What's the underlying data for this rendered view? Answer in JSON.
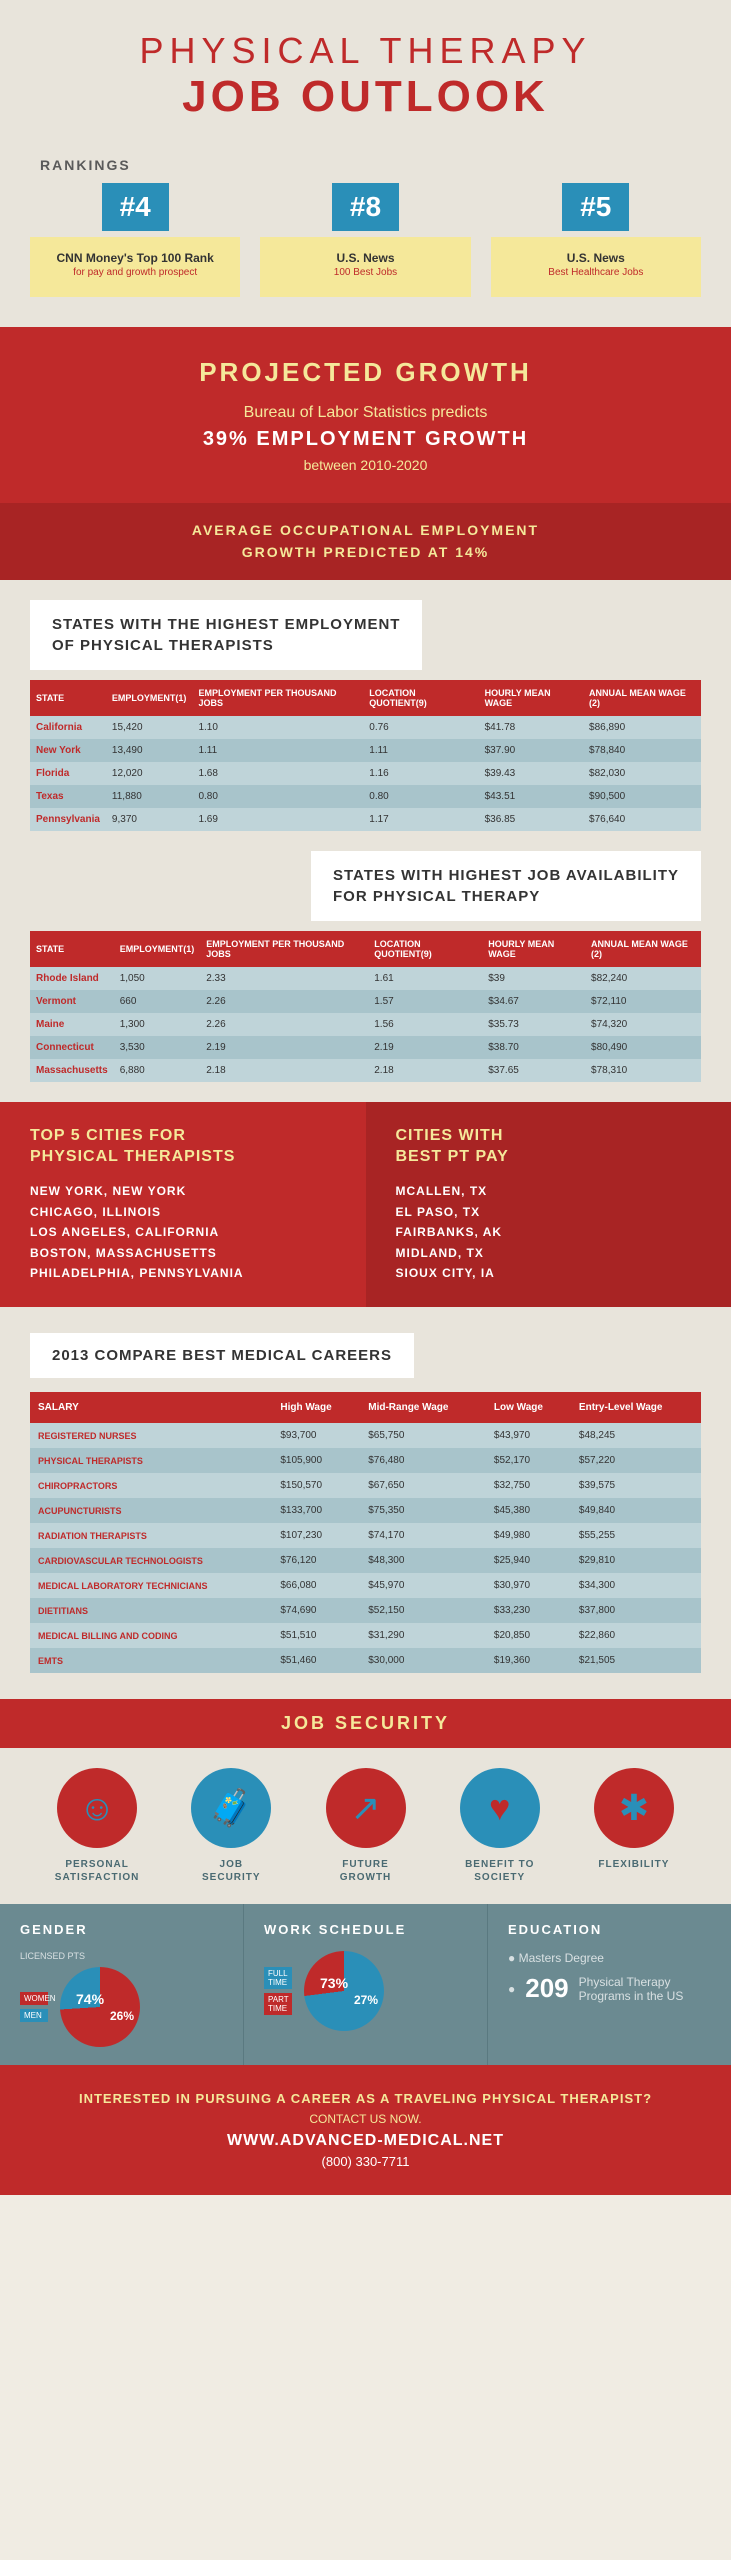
{
  "title": {
    "line1": "PHYSICAL THERAPY",
    "line2": "JOB OUTLOOK"
  },
  "rankings": {
    "label": "RANKINGS",
    "cards": [
      {
        "rank": "#4",
        "title": "CNN Money's Top 100 Rank",
        "sub": "for pay and growth prospect"
      },
      {
        "rank": "#8",
        "title": "U.S. News",
        "sub": "100 Best Jobs"
      },
      {
        "rank": "#5",
        "title": "U.S. News",
        "sub": "Best Healthcare Jobs"
      }
    ]
  },
  "growth": {
    "title": "PROJECTED GROWTH",
    "text": "Bureau of Labor Statistics predicts",
    "pct": "39% EMPLOYMENT GROWTH",
    "years": "between 2010-2020",
    "avg1": "AVERAGE OCCUPATIONAL EMPLOYMENT",
    "avg2": "GROWTH PREDICTED AT 14%"
  },
  "highest_emp": {
    "label": "STATES WITH THE HIGHEST EMPLOYMENT\nOF PHYSICAL THERAPISTS",
    "headers": [
      "STATE",
      "EMPLOYMENT(1)",
      "EMPLOYMENT PER THOUSAND JOBS",
      "LOCATION QUOTIENT(9)",
      "HOURLY MEAN WAGE",
      "ANNUAL MEAN WAGE (2)"
    ],
    "rows": [
      [
        "California",
        "15,420",
        "1.10",
        "0.76",
        "$41.78",
        "$86,890"
      ],
      [
        "New York",
        "13,490",
        "1.11",
        "1.11",
        "$37.90",
        "$78,840"
      ],
      [
        "Florida",
        "12,020",
        "1.68",
        "1.16",
        "$39.43",
        "$82,030"
      ],
      [
        "Texas",
        "11,880",
        "0.80",
        "0.80",
        "$43.51",
        "$90,500"
      ],
      [
        "Pennsylvania",
        "9,370",
        "1.69",
        "1.17",
        "$36.85",
        "$76,640"
      ]
    ]
  },
  "highest_avail": {
    "label": "STATES WITH HIGHEST JOB AVAILABILITY\nFOR PHYSICAL THERAPY",
    "headers": [
      "STATE",
      "EMPLOYMENT(1)",
      "EMPLOYMENT PER THOUSAND JOBS",
      "LOCATION QUOTIENT(9)",
      "HOURLY MEAN WAGE",
      "ANNUAL MEAN WAGE (2)"
    ],
    "rows": [
      [
        "Rhode Island",
        "1,050",
        "2.33",
        "1.61",
        "$39",
        "$82,240"
      ],
      [
        "Vermont",
        "660",
        "2.26",
        "1.57",
        "$34.67",
        "$72,110"
      ],
      [
        "Maine",
        "1,300",
        "2.26",
        "1.56",
        "$35.73",
        "$74,320"
      ],
      [
        "Connecticut",
        "3,530",
        "2.19",
        "2.19",
        "$38.70",
        "$80,490"
      ],
      [
        "Massachusetts",
        "6,880",
        "2.18",
        "2.18",
        "$37.65",
        "$78,310"
      ]
    ]
  },
  "top_cities": {
    "title": "TOP 5 CITIES FOR\nPHYSICAL THERAPISTS",
    "list": [
      "NEW YORK, NEW YORK",
      "CHICAGO, ILLINOIS",
      "LOS ANGELES, CALIFORNIA",
      "BOSTON, MASSACHUSETTS",
      "PHILADELPHIA, PENNSYLVANIA"
    ]
  },
  "best_pay": {
    "title": "CITIES WITH\nBEST PT PAY",
    "list": [
      "MCALLEN, TX",
      "EL PASO, TX",
      "FAIRBANKS, AK",
      "MIDLAND, TX",
      "SIOUX CITY, IA"
    ]
  },
  "careers": {
    "label": "2013 COMPARE BEST MEDICAL CAREERS",
    "headers": [
      "SALARY",
      "High Wage",
      "Mid-Range Wage",
      "Low Wage",
      "Entry-Level Wage"
    ],
    "rows": [
      [
        "REGISTERED NURSES",
        "$93,700",
        "$65,750",
        "$43,970",
        "$48,245"
      ],
      [
        "PHYSICAL THERAPISTS",
        "$105,900",
        "$76,480",
        "$52,170",
        "$57,220"
      ],
      [
        "CHIROPRACTORS",
        "$150,570",
        "$67,650",
        "$32,750",
        "$39,575"
      ],
      [
        "ACUPUNCTURISTS",
        "$133,700",
        "$75,350",
        "$45,380",
        "$49,840"
      ],
      [
        "RADIATION THERAPISTS",
        "$107,230",
        "$74,170",
        "$49,980",
        "$55,255"
      ],
      [
        "CARDIOVASCULAR TECHNOLOGISTS",
        "$76,120",
        "$48,300",
        "$25,940",
        "$29,810"
      ],
      [
        "MEDICAL LABORATORY TECHNICIANS",
        "$66,080",
        "$45,970",
        "$30,970",
        "$34,300"
      ],
      [
        "DIETITIANS",
        "$74,690",
        "$52,150",
        "$33,230",
        "$37,800"
      ],
      [
        "MEDICAL BILLING AND CODING",
        "$51,510",
        "$31,290",
        "$20,850",
        "$22,860"
      ],
      [
        "EMTS",
        "$51,460",
        "$30,000",
        "$19,360",
        "$21,505"
      ]
    ]
  },
  "security": {
    "title": "JOB SECURITY",
    "items": [
      {
        "label": "PERSONAL\nSATISFACTION",
        "icon": "☺",
        "red": true
      },
      {
        "label": "JOB\nSECURITY",
        "icon": "🧳",
        "red": false
      },
      {
        "label": "FUTURE\nGROWTH",
        "icon": "↗",
        "red": true
      },
      {
        "label": "BENEFIT TO\nSOCIETY",
        "icon": "♥",
        "red": false
      },
      {
        "label": "FLEXIBILITY",
        "icon": "✱",
        "red": true
      }
    ]
  },
  "gender": {
    "title": "GENDER",
    "subtitle": "LICENSED PTS",
    "women": {
      "label": "WOMEN",
      "pct": 74,
      "color": "#bf2a2a"
    },
    "men": {
      "label": "MEN",
      "pct": 26,
      "color": "#2a8fb8"
    }
  },
  "schedule": {
    "title": "WORK SCHEDULE",
    "full": {
      "label": "FULL TIME",
      "pct": 73,
      "color": "#2a8fb8"
    },
    "part": {
      "label": "PART TIME",
      "pct": 27,
      "color": "#bf2a2a"
    }
  },
  "education": {
    "title": "EDUCATION",
    "line1": "Masters Degree",
    "count": "209",
    "line2": "Physical Therapy\nPrograms in the US"
  },
  "footer": {
    "q": "INTERESTED IN PURSUING A CAREER AS A TRAVELING PHYSICAL THERAPIST?",
    "cta": "CONTACT US NOW.",
    "url": "WWW.ADVANCED-MEDICAL.NET",
    "phone": "(800) 330-7711"
  },
  "colors": {
    "red": "#bf2a2a",
    "darkred": "#a82424",
    "blue": "#2a8fb8",
    "yellow": "#f5e89a",
    "teal": "#6b8a91"
  }
}
